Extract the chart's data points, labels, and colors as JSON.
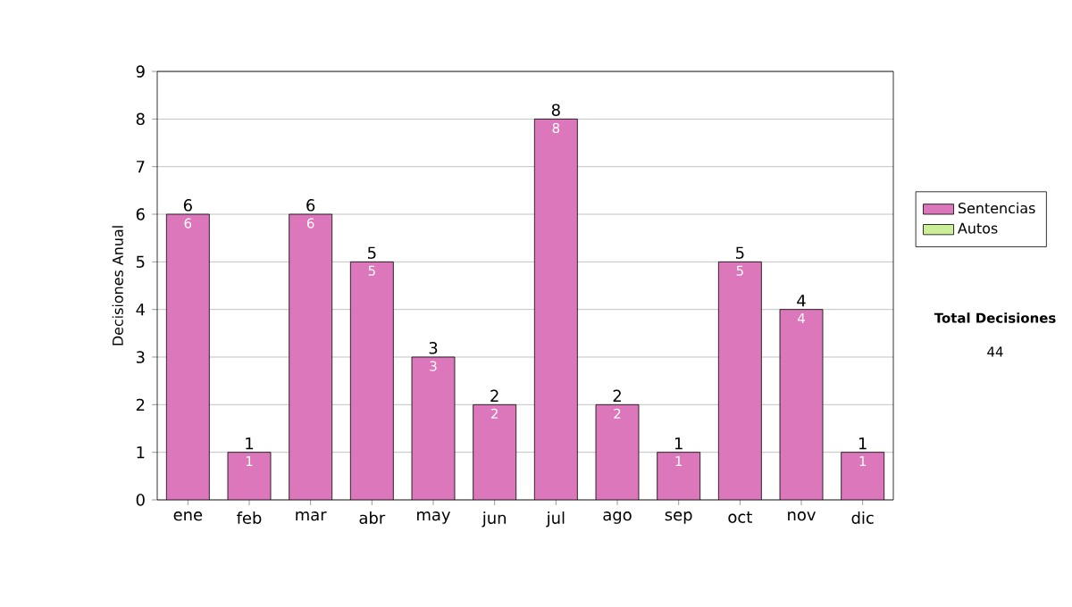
{
  "chart_data": {
    "type": "bar",
    "ylabel": "Decisiones Anual",
    "categories": [
      "ene",
      "feb",
      "mar",
      "abr",
      "may",
      "jun",
      "jul",
      "ago",
      "sep",
      "oct",
      "nov",
      "dic"
    ],
    "series": [
      {
        "name": "Sentencias",
        "color": "#dd77bb",
        "values": [
          6,
          1,
          6,
          5,
          3,
          2,
          8,
          2,
          1,
          5,
          4,
          1
        ],
        "value_labels": [
          "6",
          "1",
          "6",
          "5",
          "3",
          "2",
          "8",
          "2",
          "1",
          "5",
          "4",
          "1"
        ]
      },
      {
        "name": "Autos",
        "color": "#ccee99",
        "values": [
          null,
          null,
          null,
          null,
          null,
          null,
          null,
          null,
          null,
          null,
          null,
          null
        ]
      }
    ],
    "totals": [
      "6",
      "1",
      "6",
      "5",
      "3",
      "2",
      "8",
      "2",
      "1",
      "5",
      "4",
      "1"
    ],
    "ylim": [
      0,
      9
    ],
    "yticks": [
      0,
      1,
      2,
      3,
      4,
      5,
      6,
      7,
      8,
      9
    ],
    "grid": "y",
    "legend": "right",
    "annotations": [
      "Total Decisiones",
      "44"
    ]
  }
}
